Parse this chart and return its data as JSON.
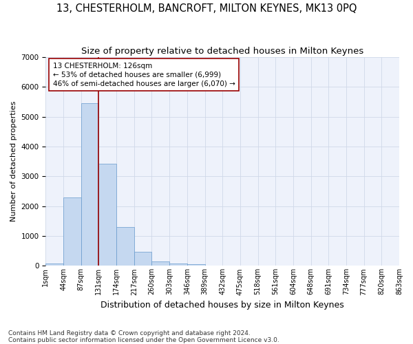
{
  "title": "13, CHESTERHOLM, BANCROFT, MILTON KEYNES, MK13 0PQ",
  "subtitle": "Size of property relative to detached houses in Milton Keynes",
  "xlabel": "Distribution of detached houses by size in Milton Keynes",
  "ylabel": "Number of detached properties",
  "footer_line1": "Contains HM Land Registry data © Crown copyright and database right 2024.",
  "footer_line2": "Contains public sector information licensed under the Open Government Licence v3.0.",
  "bar_values": [
    75,
    2290,
    5450,
    3430,
    1310,
    460,
    155,
    80,
    50,
    0,
    0,
    0,
    0,
    0,
    0,
    0,
    0,
    0,
    0,
    0
  ],
  "bar_color": "#c5d8f0",
  "bar_edge_color": "#6699cc",
  "bin_labels": [
    "1sqm",
    "44sqm",
    "87sqm",
    "131sqm",
    "174sqm",
    "217sqm",
    "260sqm",
    "303sqm",
    "346sqm",
    "389sqm",
    "432sqm",
    "475sqm",
    "518sqm",
    "561sqm",
    "604sqm",
    "648sqm",
    "691sqm",
    "734sqm",
    "777sqm",
    "820sqm",
    "863sqm"
  ],
  "vline_color": "#990000",
  "annotation_text": "13 CHESTERHOLM: 126sqm\n← 53% of detached houses are smaller (6,999)\n46% of semi-detached houses are larger (6,070) →",
  "ylim": [
    0,
    7000
  ],
  "yticks": [
    0,
    1000,
    2000,
    3000,
    4000,
    5000,
    6000,
    7000
  ],
  "background_color": "#eef2fb",
  "title_fontsize": 10.5,
  "subtitle_fontsize": 9.5,
  "xlabel_fontsize": 9,
  "ylabel_fontsize": 8,
  "tick_fontsize": 7,
  "footer_fontsize": 6.5
}
